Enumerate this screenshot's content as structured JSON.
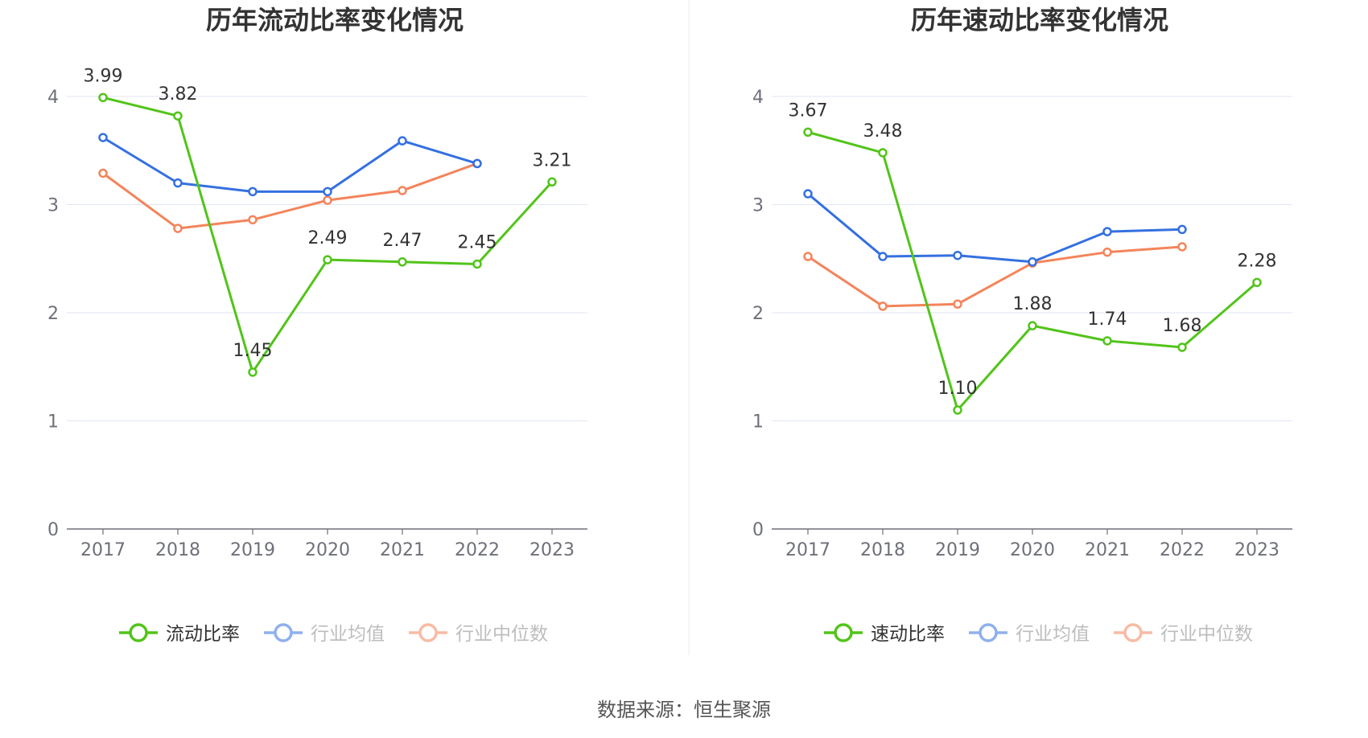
{
  "footer": {
    "source": "数据来源：恒生聚源"
  },
  "chart_data": [
    {
      "type": "line",
      "title": "历年流动比率变化情况",
      "categories": [
        "2017",
        "2018",
        "2019",
        "2020",
        "2021",
        "2022",
        "2023"
      ],
      "ylim": [
        0,
        4
      ],
      "yticks": [
        "0",
        "1",
        "2",
        "3",
        "4"
      ],
      "series": [
        {
          "name": "流动比率",
          "color": "#52c41a",
          "values": [
            3.99,
            3.82,
            1.45,
            2.49,
            2.47,
            2.45,
            3.21
          ],
          "labels": [
            "3.99",
            "3.82",
            "1.45",
            "2.49",
            "2.47",
            "2.45",
            "3.21"
          ],
          "show_labels": true
        },
        {
          "name": "行业均值",
          "color": "#3470e0",
          "values": [
            3.62,
            3.2,
            3.12,
            3.12,
            3.59,
            3.38,
            null
          ],
          "show_labels": false
        },
        {
          "name": "行业中位数",
          "color": "#f4845a",
          "values": [
            3.29,
            2.78,
            2.86,
            3.04,
            3.13,
            3.38,
            null
          ],
          "show_labels": false
        }
      ]
    },
    {
      "type": "line",
      "title": "历年速动比率变化情况",
      "categories": [
        "2017",
        "2018",
        "2019",
        "2020",
        "2021",
        "2022",
        "2023"
      ],
      "ylim": [
        0,
        4
      ],
      "yticks": [
        "0",
        "1",
        "2",
        "3",
        "4"
      ],
      "series": [
        {
          "name": "速动比率",
          "color": "#52c41a",
          "values": [
            3.67,
            3.48,
            1.1,
            1.88,
            1.74,
            1.68,
            2.28
          ],
          "labels": [
            "3.67",
            "3.48",
            "1.10",
            "1.88",
            "1.74",
            "1.68",
            "2.28"
          ],
          "show_labels": true
        },
        {
          "name": "行业均值",
          "color": "#3470e0",
          "values": [
            3.1,
            2.52,
            2.53,
            2.47,
            2.75,
            2.77,
            null
          ],
          "show_labels": false
        },
        {
          "name": "行业中位数",
          "color": "#f4845a",
          "values": [
            2.52,
            2.06,
            2.08,
            2.46,
            2.56,
            2.61,
            null
          ],
          "show_labels": false
        }
      ]
    }
  ]
}
